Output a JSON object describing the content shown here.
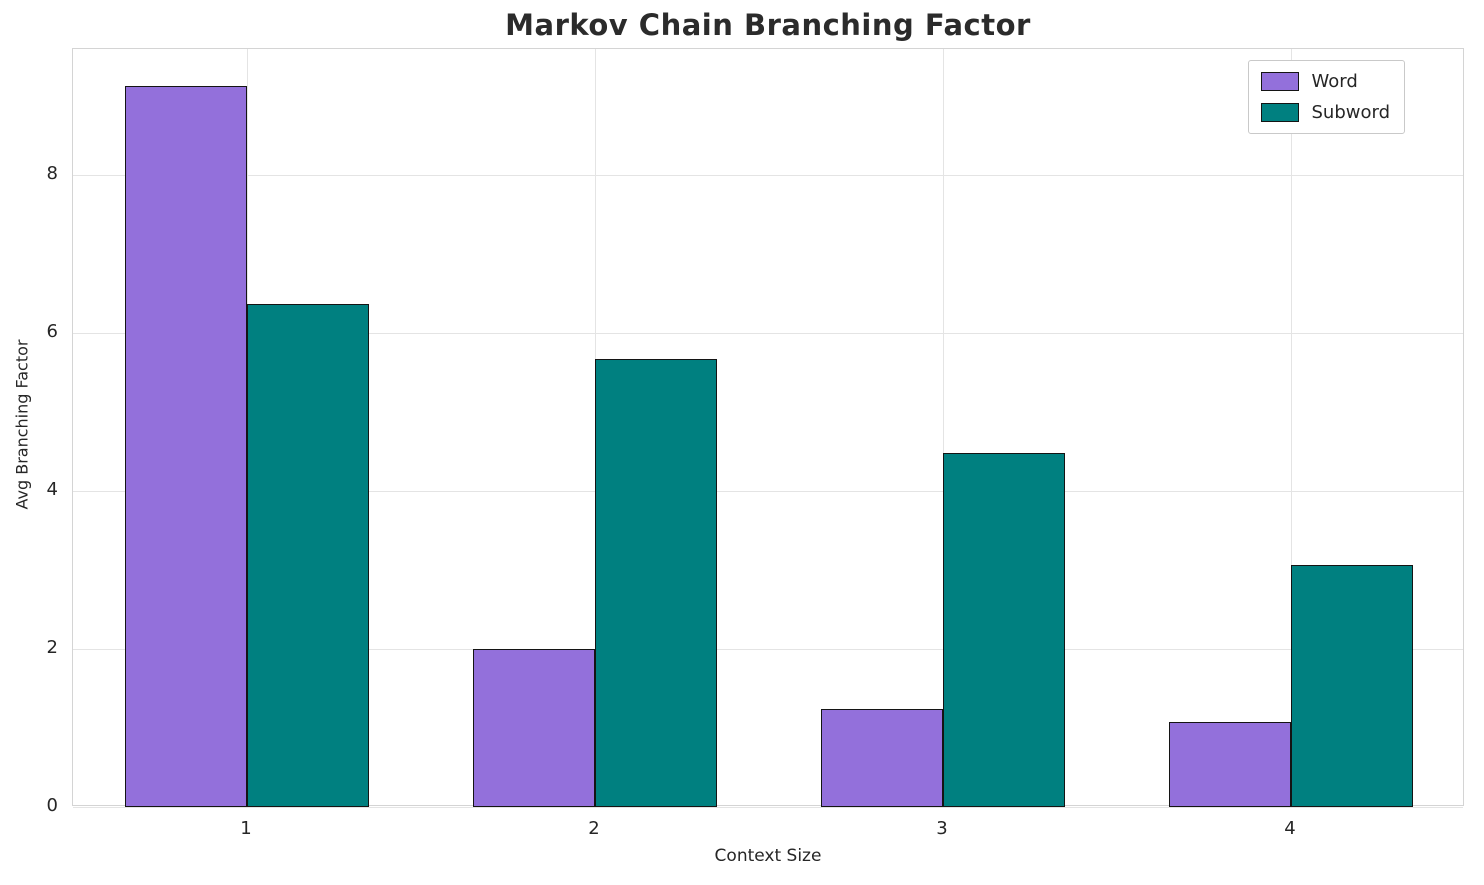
{
  "chart_data": {
    "type": "bar",
    "title": "Markov Chain Branching Factor",
    "xlabel": "Context Size",
    "ylabel": "Avg Branching Factor",
    "categories": [
      "1",
      "2",
      "3",
      "4"
    ],
    "series": [
      {
        "name": "Word",
        "color": "#9370DB",
        "values": [
          9.13,
          2.0,
          1.24,
          1.08
        ]
      },
      {
        "name": "Subword",
        "color": "#008080",
        "values": [
          6.37,
          5.68,
          4.48,
          3.06
        ]
      }
    ],
    "ylim": [
      0,
      9.6
    ],
    "yticks": [
      0,
      2,
      4,
      6,
      8
    ],
    "grid": true,
    "bar_width_fraction": 0.35,
    "bar_edge_color": "#141414",
    "legend_position": "upper right"
  }
}
